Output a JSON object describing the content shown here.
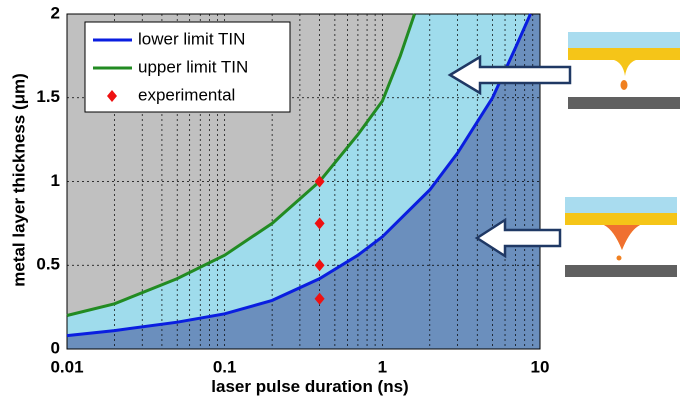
{
  "chart_data": {
    "type": "line",
    "x_label": "laser pulse duration (ns)",
    "y_label": "metal layer thickness (μm)",
    "xlim": [
      0.01,
      10
    ],
    "ylim": [
      0,
      2
    ],
    "xticks": [
      0.01,
      0.1,
      1,
      10
    ],
    "yticks": [
      0,
      0.5,
      1,
      1.5,
      2
    ],
    "x_log": true,
    "grid": true,
    "legend": "upper left",
    "series": [
      {
        "name": "lower limit TIN",
        "color": "#0a1ee0",
        "x": [
          0.01,
          0.02,
          0.05,
          0.1,
          0.2,
          0.4,
          0.7,
          1,
          2,
          3,
          5,
          7,
          8.7
        ],
        "values": [
          0.08,
          0.11,
          0.16,
          0.21,
          0.29,
          0.42,
          0.56,
          0.67,
          0.95,
          1.17,
          1.5,
          1.8,
          2
        ]
      },
      {
        "name": "upper limit TIN",
        "color": "#228b22",
        "x": [
          0.01,
          0.02,
          0.05,
          0.1,
          0.2,
          0.4,
          0.7,
          1,
          1.3,
          1.6
        ],
        "values": [
          0.2,
          0.27,
          0.42,
          0.56,
          0.75,
          1.0,
          1.28,
          1.48,
          1.75,
          2
        ]
      },
      {
        "name": "experimental",
        "color": "#ee1111",
        "type": "scatter",
        "x": [
          0.4,
          0.4,
          0.4,
          0.4
        ],
        "values": [
          1,
          0.75,
          0.5,
          0.3
        ]
      }
    ],
    "region_colors": [
      "#c0c0c0",
      "#9fdcec",
      "#6b8fbd"
    ]
  }
}
